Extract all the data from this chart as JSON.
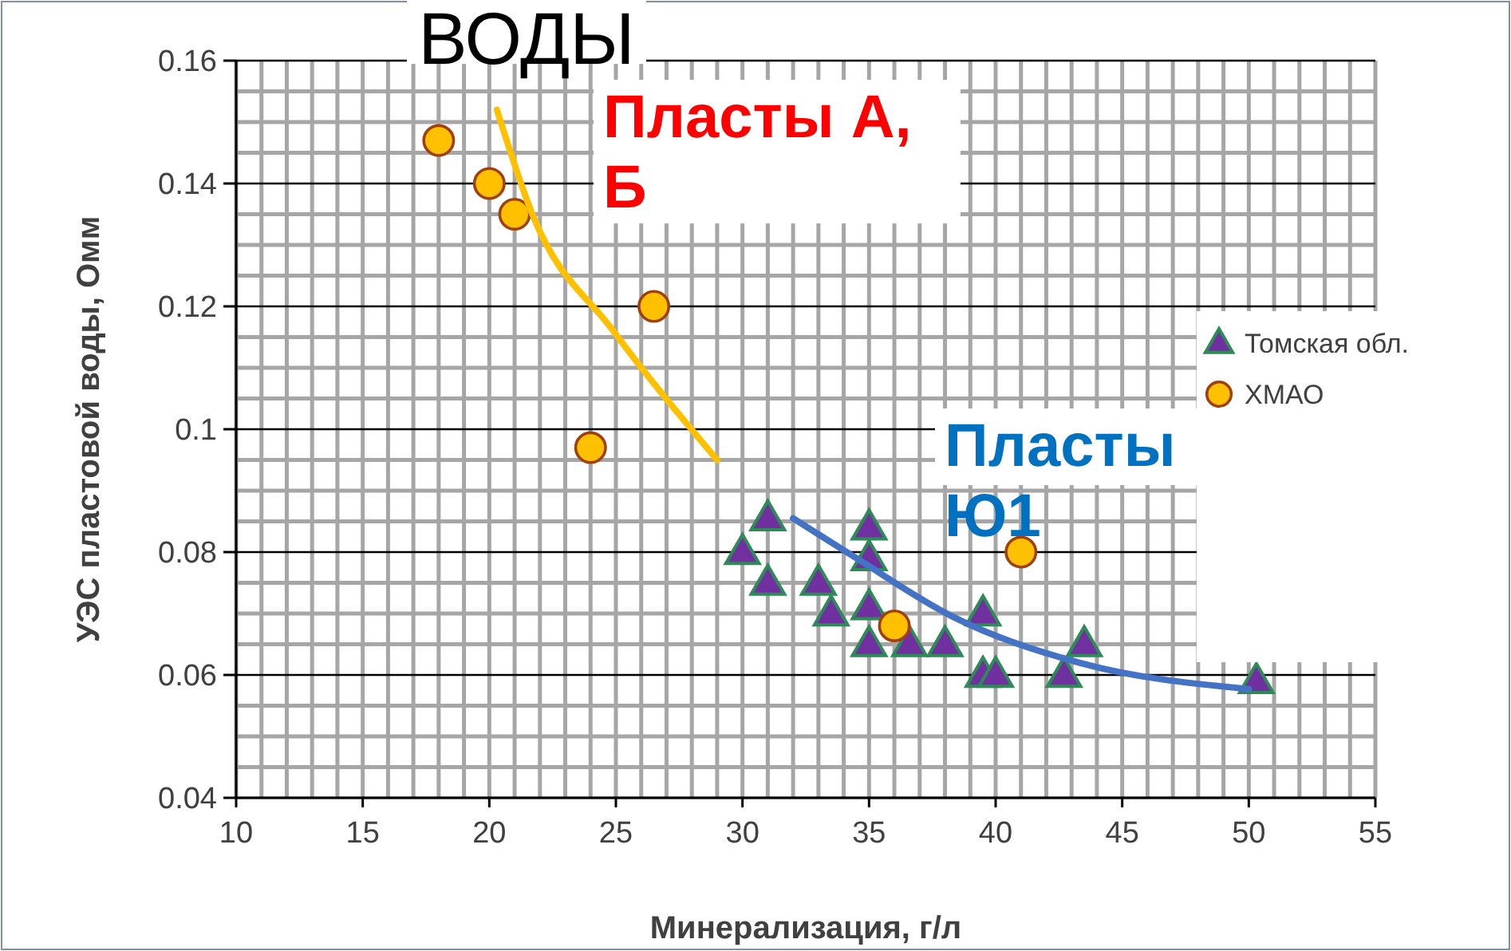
{
  "chart_data": {
    "type": "scatter",
    "title": "ВОДЫ",
    "xlabel": "Минерализация, г/л",
    "ylabel": "УЭС пластовой воды, Омм",
    "xlim": [
      10,
      55
    ],
    "xticks": [
      10,
      15,
      20,
      25,
      30,
      35,
      40,
      45,
      50,
      55
    ],
    "ylim": [
      0.04,
      0.16
    ],
    "yticks": [
      0.04,
      0.06,
      0.08,
      {
        "value": 0.1,
        "label": "0.1"
      },
      0.12,
      0.14,
      0.16
    ],
    "grid": true,
    "legend": "right",
    "annotations": [
      "Пласты А, Б",
      "Пласты Ю1"
    ],
    "series": [
      {
        "name": "Томская обл.",
        "marker": "triangle",
        "color": "#7030a0",
        "x": [
          30,
          31,
          31,
          33,
          33.5,
          35,
          35,
          35,
          35,
          36.6,
          38,
          39.5,
          39.5,
          40,
          42.7,
          43.5,
          50.3
        ],
        "values": [
          0.08,
          0.0855,
          0.075,
          0.075,
          0.07,
          0.084,
          0.079,
          0.071,
          0.065,
          0.065,
          0.065,
          0.07,
          0.06,
          0.06,
          0.06,
          0.065,
          0.059
        ]
      },
      {
        "name": "ХМАО",
        "marker": "circle",
        "color": "#ffc000",
        "x": [
          18,
          20,
          21,
          26.5,
          24,
          36,
          41
        ],
        "values": [
          0.147,
          0.14,
          0.135,
          0.12,
          0.097,
          0.068,
          0.08
        ]
      },
      {
        "type": "line",
        "color": "#ffc000",
        "x": [
          20.3,
          21.7,
          24.9,
          29
        ],
        "values": [
          0.152,
          0.135,
          0.116,
          0.095
        ]
      },
      {
        "type": "line",
        "color": "#4472c4",
        "x": [
          32,
          34.5,
          38.3,
          43.3,
          50
        ],
        "values": [
          0.0855,
          0.079,
          0.0695,
          0.062,
          0.0577
        ]
      }
    ]
  }
}
